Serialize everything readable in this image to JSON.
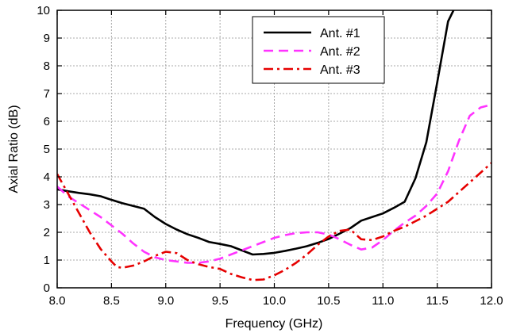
{
  "chart_data": {
    "type": "line",
    "title": "",
    "xlabel": "Frequency (GHz)",
    "ylabel": "Axial Ratio (dB)",
    "xlim": [
      8.0,
      12.0
    ],
    "ylim": [
      0,
      10
    ],
    "xticks": [
      "8.0",
      "8.5",
      "9.0",
      "9.5",
      "10.0",
      "10.5",
      "11.0",
      "11.5",
      "12.0"
    ],
    "yticks": [
      "0",
      "1",
      "2",
      "3",
      "4",
      "5",
      "6",
      "7",
      "8",
      "9",
      "10"
    ],
    "grid": true,
    "legend": {
      "position": "top-right"
    },
    "series": [
      {
        "name": "Ant. #1",
        "color": "#000000",
        "dash": "solid",
        "x": [
          8.0,
          8.1,
          8.2,
          8.3,
          8.4,
          8.5,
          8.6,
          8.7,
          8.8,
          8.9,
          9.0,
          9.1,
          9.2,
          9.3,
          9.4,
          9.5,
          9.6,
          9.7,
          9.8,
          9.9,
          10.0,
          10.1,
          10.2,
          10.3,
          10.4,
          10.5,
          10.6,
          10.7,
          10.8,
          10.9,
          11.0,
          11.1,
          11.2,
          11.3,
          11.4,
          11.5,
          11.6,
          11.65
        ],
        "y": [
          3.55,
          3.48,
          3.42,
          3.37,
          3.3,
          3.17,
          3.05,
          2.95,
          2.85,
          2.55,
          2.3,
          2.1,
          1.93,
          1.8,
          1.65,
          1.58,
          1.5,
          1.35,
          1.2,
          1.22,
          1.26,
          1.33,
          1.41,
          1.5,
          1.62,
          1.76,
          1.95,
          2.15,
          2.42,
          2.55,
          2.68,
          2.88,
          3.1,
          3.95,
          5.25,
          7.4,
          9.6,
          10.0
        ]
      },
      {
        "name": "Ant. #2",
        "color": "#ff33ff",
        "dash": "dashed",
        "x": [
          8.0,
          8.1,
          8.2,
          8.3,
          8.4,
          8.5,
          8.6,
          8.7,
          8.8,
          8.9,
          9.0,
          9.1,
          9.2,
          9.3,
          9.4,
          9.5,
          9.6,
          9.7,
          9.8,
          9.9,
          10.0,
          10.1,
          10.2,
          10.3,
          10.4,
          10.5,
          10.6,
          10.7,
          10.8,
          10.9,
          11.0,
          11.1,
          11.2,
          11.3,
          11.4,
          11.5,
          11.6,
          11.7,
          11.8,
          11.9,
          12.0
        ],
        "y": [
          3.65,
          3.3,
          3.05,
          2.8,
          2.55,
          2.25,
          1.95,
          1.6,
          1.3,
          1.1,
          1.0,
          0.95,
          0.9,
          0.9,
          0.95,
          1.05,
          1.2,
          1.35,
          1.5,
          1.65,
          1.8,
          1.9,
          1.97,
          2.0,
          2.0,
          1.92,
          1.75,
          1.55,
          1.38,
          1.45,
          1.72,
          2.05,
          2.35,
          2.6,
          2.95,
          3.4,
          4.2,
          5.3,
          6.2,
          6.5,
          6.6
        ]
      },
      {
        "name": "Ant. #3",
        "color": "#e60000",
        "dash": "dash-dot",
        "x": [
          8.0,
          8.1,
          8.2,
          8.3,
          8.4,
          8.5,
          8.55,
          8.6,
          8.7,
          8.8,
          8.9,
          9.0,
          9.1,
          9.2,
          9.3,
          9.4,
          9.5,
          9.6,
          9.7,
          9.8,
          9.9,
          10.0,
          10.1,
          10.2,
          10.3,
          10.4,
          10.5,
          10.6,
          10.7,
          10.8,
          10.9,
          11.0,
          11.1,
          11.2,
          11.3,
          11.4,
          11.5,
          11.6,
          11.7,
          11.8,
          11.9,
          12.0
        ],
        "y": [
          4.1,
          3.4,
          2.7,
          2.0,
          1.4,
          0.95,
          0.75,
          0.72,
          0.8,
          0.95,
          1.15,
          1.3,
          1.25,
          1.0,
          0.85,
          0.75,
          0.68,
          0.5,
          0.38,
          0.28,
          0.3,
          0.45,
          0.65,
          0.9,
          1.2,
          1.55,
          1.85,
          2.05,
          2.1,
          1.75,
          1.72,
          1.85,
          2.05,
          2.2,
          2.4,
          2.6,
          2.85,
          3.1,
          3.45,
          3.8,
          4.15,
          4.5
        ]
      }
    ]
  }
}
